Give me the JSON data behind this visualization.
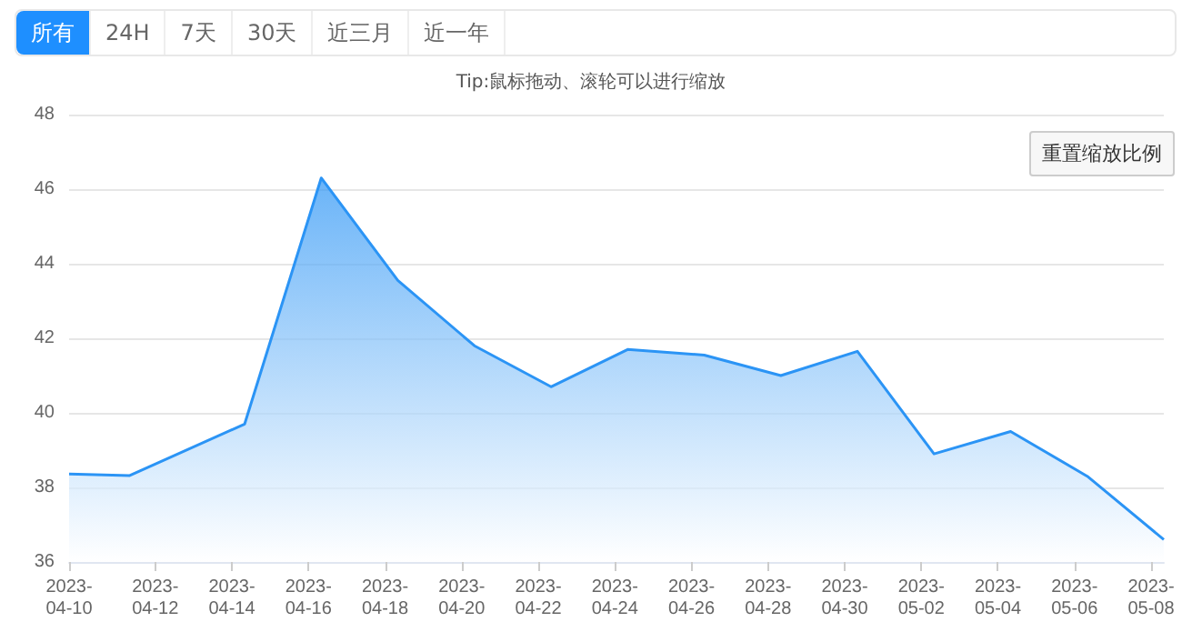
{
  "chart_data": {
    "type": "area",
    "subtitle": "Tip:鼠标拖动、滚轮可以进行缩放",
    "annotations": [
      "所有",
      "24H",
      "7天",
      "30天",
      "近三月",
      "近一年",
      "重置缩放比例"
    ],
    "x": [
      "2023-04-09T18:00",
      "2023-04-11T08:00",
      "2023-04-14T08:00",
      "2023-04-16T08:00",
      "2023-04-18T08:00",
      "2023-04-20T08:00",
      "2023-04-22T08:00",
      "2023-04-24T08:00",
      "2023-04-26T08:00",
      "2023-04-28T08:00",
      "2023-04-30T08:00",
      "2023-05-02T08:00",
      "2023-05-04T08:00",
      "2023-05-06T08:00",
      "2023-05-08T08:00"
    ],
    "series": [
      {
        "color": "#2b94f5",
        "values": [
          38.36,
          38.32,
          39.7,
          46.3,
          43.55,
          41.8,
          40.7,
          41.7,
          41.55,
          41.0,
          41.65,
          38.9,
          39.5,
          38.3,
          36.6
        ]
      }
    ],
    "xlim": [
      "2023-04-09T18:00",
      "2023-05-08T08:00"
    ],
    "xticks": [
      {
        "value": "2023-04-09T18:00",
        "label": "2023-04-10"
      },
      {
        "value": "2023-04-12",
        "label": "2023-04-12"
      },
      {
        "value": "2023-04-14",
        "label": "2023-04-14"
      },
      {
        "value": "2023-04-16",
        "label": "2023-04-16"
      },
      {
        "value": "2023-04-18",
        "label": "2023-04-18"
      },
      {
        "value": "2023-04-20",
        "label": "2023-04-20"
      },
      {
        "value": "2023-04-22",
        "label": "2023-04-22"
      },
      {
        "value": "2023-04-24",
        "label": "2023-04-24"
      },
      {
        "value": "2023-04-26",
        "label": "2023-04-26"
      },
      {
        "value": "2023-04-28",
        "label": "2023-04-28"
      },
      {
        "value": "2023-04-30",
        "label": "2023-04-30"
      },
      {
        "value": "2023-05-02",
        "label": "2023-05-02"
      },
      {
        "value": "2023-05-04",
        "label": "2023-05-04"
      },
      {
        "value": "2023-05-06",
        "label": "2023-05-06"
      },
      {
        "value": "2023-05-08",
        "label": "2023-05-08"
      }
    ],
    "ylim": [
      36,
      48
    ],
    "yticks": [
      36,
      38,
      40,
      42,
      44,
      46,
      48
    ],
    "grid": "y"
  }
}
